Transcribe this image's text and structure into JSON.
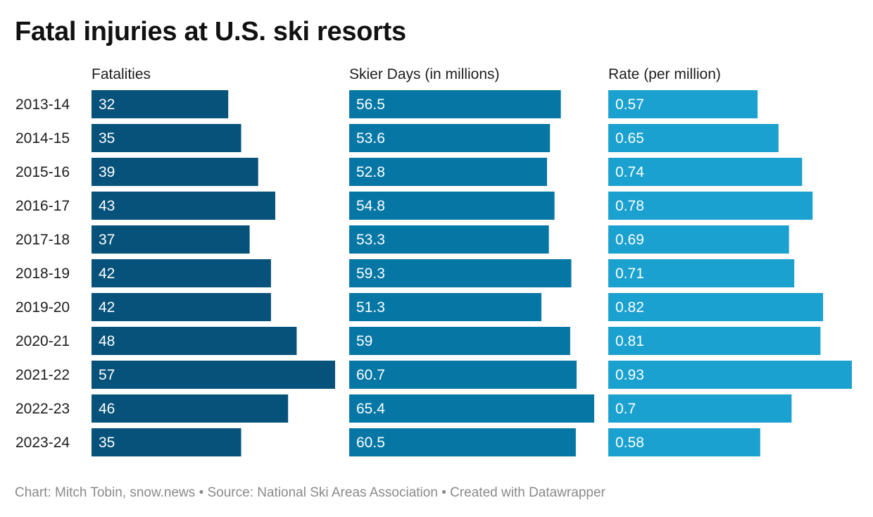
{
  "title": "Fatal injuries at U.S. ski resorts",
  "footer": {
    "credit": "Chart: Mitch Tobin, snow.news",
    "source": "Source: National Ski Areas Association",
    "tool": "Created with Datawrapper",
    "separator": "•"
  },
  "chart_data": {
    "type": "bar",
    "orientation": "horizontal",
    "title": "Fatal injuries at U.S. ski resorts",
    "categories": [
      "2013-14",
      "2014-15",
      "2015-16",
      "2016-17",
      "2017-18",
      "2018-19",
      "2019-20",
      "2020-21",
      "2021-22",
      "2022-23",
      "2023-24"
    ],
    "series": [
      {
        "name": "Fatalities",
        "color": "#06527a",
        "labels": [
          "32",
          "35",
          "39",
          "43",
          "37",
          "42",
          "42",
          "48",
          "57",
          "46",
          "35"
        ],
        "values": [
          32,
          35,
          39,
          43,
          37,
          42,
          42,
          48,
          57,
          46,
          35
        ]
      },
      {
        "name": "Skier Days (in millions)",
        "color": "#0677a5",
        "labels": [
          "56.5",
          "53.6",
          "52.8",
          "54.8",
          "53.3",
          "59.3",
          "51.3",
          "59",
          "60.7",
          "65.4",
          "60.5"
        ],
        "values": [
          56.5,
          53.6,
          52.8,
          54.8,
          53.3,
          59.3,
          51.3,
          59,
          60.7,
          65.4,
          60.5
        ]
      },
      {
        "name": "Rate (per million)",
        "color": "#1aa1cf",
        "labels": [
          "0.57",
          "0.65",
          "0.74",
          "0.78",
          "0.69",
          "0.71",
          "0.82",
          "0.81",
          "0.93",
          "0.7",
          "0.58"
        ],
        "values": [
          0.57,
          0.65,
          0.74,
          0.78,
          0.69,
          0.71,
          0.82,
          0.81,
          0.93,
          0.7,
          0.58
        ]
      }
    ],
    "xlim_per_series": [
      [
        0,
        57
      ],
      [
        0,
        65.4
      ],
      [
        0,
        0.93
      ]
    ],
    "grid": false,
    "legend": "none"
  }
}
